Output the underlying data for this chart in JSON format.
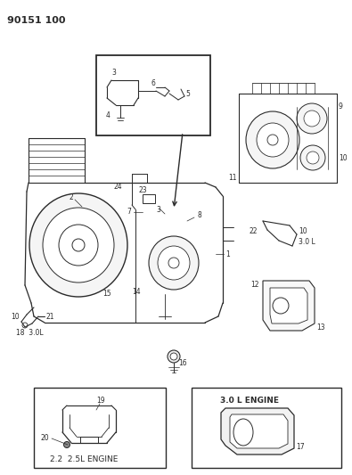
{
  "title": "90151 100",
  "bg_color": "#ffffff",
  "line_color": "#2a2a2a",
  "fig_width": 3.95,
  "fig_height": 5.33,
  "dpi": 100,
  "box1_label": "2.2  2.5L ENGINE",
  "box2_label": "3.0 L ENGINE"
}
